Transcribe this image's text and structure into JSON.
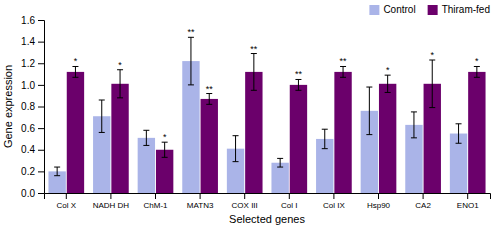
{
  "chart_data": {
    "type": "bar",
    "categories": [
      "Col X",
      "NADH DH",
      "ChM-1",
      "MATN3",
      "COX III",
      "Col I",
      "Col IX",
      "Hsp90",
      "CA2",
      "ENO1"
    ],
    "series": [
      {
        "name": "Control",
        "color": "#aab4e8",
        "values": [
          0.2,
          0.71,
          0.51,
          1.22,
          0.41,
          0.28,
          0.5,
          0.76,
          0.63,
          0.55
        ],
        "errors": [
          0.04,
          0.15,
          0.07,
          0.22,
          0.12,
          0.04,
          0.09,
          0.22,
          0.12,
          0.09
        ],
        "significance": [
          null,
          null,
          null,
          "**",
          null,
          null,
          null,
          null,
          null,
          null
        ]
      },
      {
        "name": "Thiram-fed",
        "color": "#6b006b",
        "values": [
          1.12,
          1.01,
          0.4,
          0.87,
          1.12,
          1.0,
          1.12,
          1.01,
          1.01,
          1.12
        ],
        "errors": [
          0.05,
          0.13,
          0.07,
          0.05,
          0.17,
          0.05,
          0.05,
          0.08,
          0.22,
          0.05
        ],
        "significance": [
          "*",
          "*",
          "*",
          "**",
          "**",
          "**",
          "**",
          "*",
          "*",
          "*"
        ]
      }
    ],
    "ylim": [
      0,
      1.6
    ],
    "yticks": [
      {
        "value": 0,
        "label": "0.0"
      },
      0.2,
      0.4,
      0.6,
      0.8,
      {
        "value": 1.0,
        "label": "1.0"
      },
      1.2,
      1.4,
      1.6
    ],
    "ylabel": "Gene expression",
    "xlabel": "Selected genes",
    "legend": "upper right",
    "grid": false
  }
}
